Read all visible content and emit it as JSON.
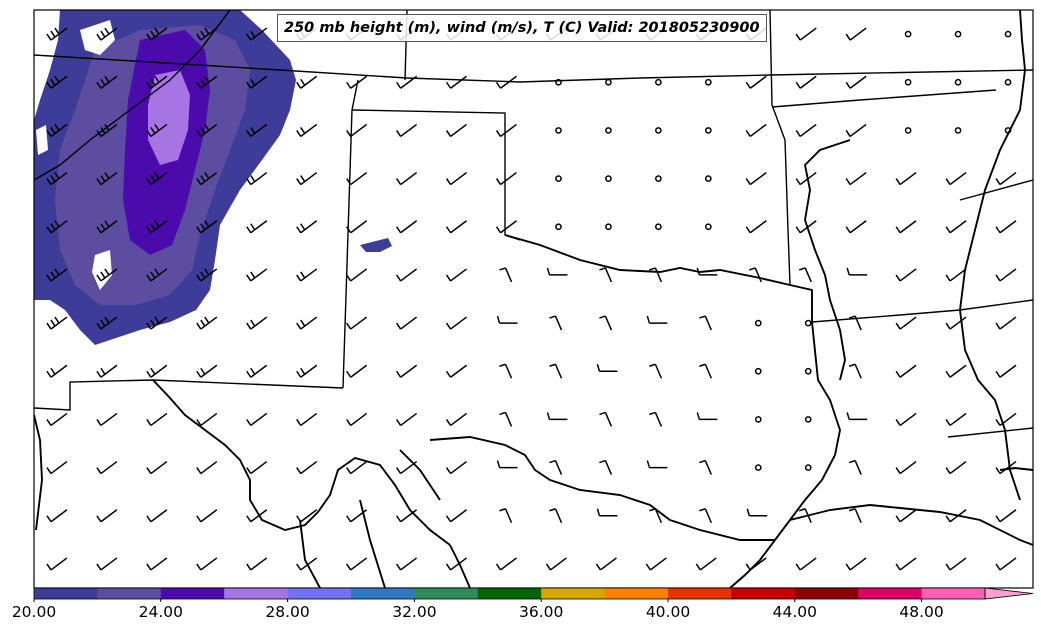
{
  "title": "250 mb height (m), wind (m/s), T (C) Valid: 201805230900",
  "colorbar": {
    "tick_labels": [
      "20.00",
      "24.00",
      "28.00",
      "32.00",
      "36.00",
      "40.00",
      "44.00",
      "48.00"
    ],
    "tick_values": [
      20,
      24,
      28,
      32,
      36,
      40,
      44,
      48
    ],
    "range": [
      20,
      51.5
    ],
    "bin_width": 2,
    "extend": "max",
    "colors": [
      "#3d3d99",
      "#5c4da0",
      "#4b0aab",
      "#a775e3",
      "#7272f7",
      "#2f79c4",
      "#2e8b57",
      "#006400",
      "#d4a800",
      "#ff8000",
      "#e83200",
      "#c80000",
      "#8b0000",
      "#dc0066",
      "#ff5fb4",
      "#ffa0d2"
    ]
  },
  "shading": {
    "variable": "wind speed (m/s)",
    "region": "northwest corner (Colorado / western Kansas)",
    "colors": [
      "#3d3d99",
      "#5c4da0",
      "#4b0aab",
      "#a775e3"
    ]
  },
  "wind_barbs": {
    "grid_cols": 20,
    "grid_rows": 12,
    "prevailing_direction": "southwest to west",
    "calm_marker": "circle"
  }
}
